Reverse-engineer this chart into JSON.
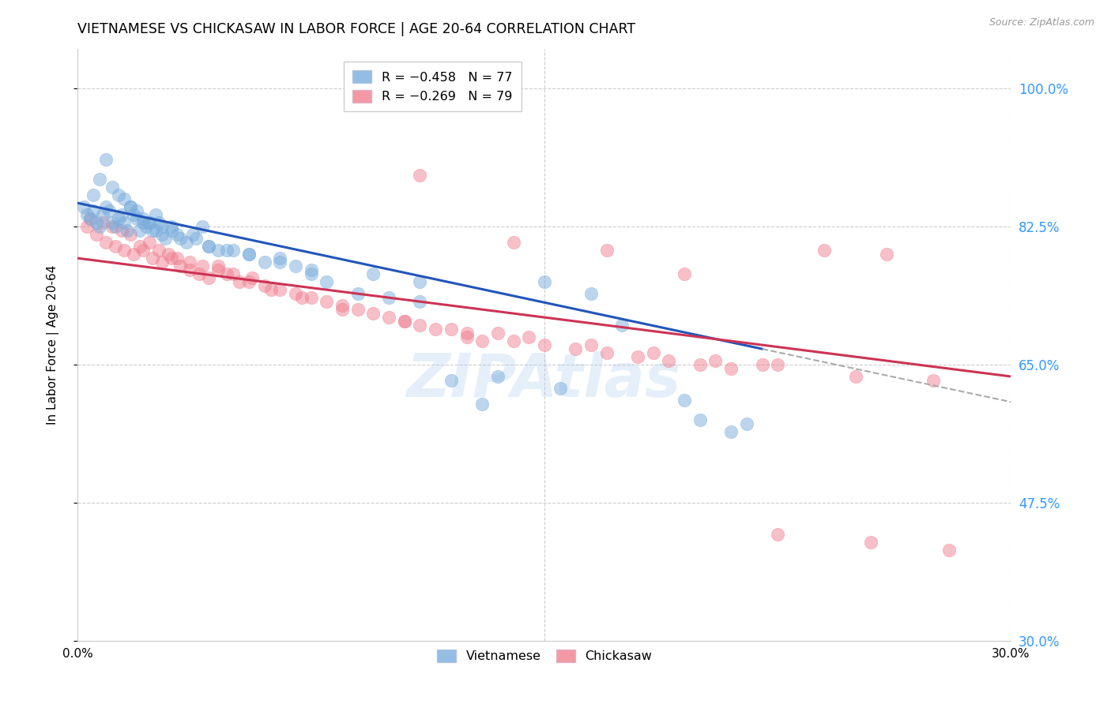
{
  "title": "VIETNAMESE VS CHICKASAW IN LABOR FORCE | AGE 20-64 CORRELATION CHART",
  "source": "Source: ZipAtlas.com",
  "ylabel": "In Labor Force | Age 20-64",
  "yticks": [
    30.0,
    47.5,
    65.0,
    82.5,
    100.0
  ],
  "xlim": [
    0.0,
    30.0
  ],
  "ylim": [
    30.0,
    105.0
  ],
  "R_vietnamese": -0.458,
  "N_vietnamese": 77,
  "R_chickasaw": -0.269,
  "N_chickasaw": 79,
  "blue_color": "#7aaddc",
  "blue_line_color": "#2255bb",
  "pink_color": "#f08090",
  "pink_line_color": "#cc3355",
  "background_color": "#ffffff",
  "grid_color": "#cccccc",
  "viet_x": [
    0.2,
    0.3,
    0.4,
    0.5,
    0.6,
    0.7,
    0.8,
    0.9,
    1.0,
    1.1,
    1.2,
    1.3,
    1.4,
    1.5,
    1.6,
    1.7,
    1.8,
    1.9,
    2.0,
    2.1,
    2.2,
    2.3,
    2.4,
    2.5,
    2.6,
    2.7,
    2.8,
    3.0,
    3.2,
    3.5,
    3.8,
    4.0,
    4.2,
    4.5,
    5.0,
    5.5,
    6.0,
    6.5,
    7.0,
    7.5,
    8.0,
    9.0,
    10.0,
    11.0,
    12.0,
    13.0,
    15.0,
    16.5,
    20.0,
    21.0,
    0.5,
    0.7,
    0.9,
    1.1,
    1.3,
    1.5,
    1.7,
    1.9,
    2.1,
    2.3,
    2.5,
    2.7,
    3.0,
    3.3,
    3.7,
    4.2,
    4.8,
    5.5,
    6.5,
    7.5,
    9.5,
    11.0,
    13.5,
    15.5,
    17.5,
    19.5,
    21.5
  ],
  "viet_y": [
    85.0,
    84.0,
    83.5,
    84.5,
    83.0,
    82.5,
    84.0,
    85.0,
    84.5,
    83.0,
    82.5,
    83.5,
    84.0,
    83.0,
    82.0,
    85.0,
    84.0,
    83.5,
    82.0,
    83.0,
    82.5,
    83.0,
    82.0,
    84.0,
    83.0,
    82.5,
    81.0,
    82.0,
    81.5,
    80.5,
    81.0,
    82.5,
    80.0,
    79.5,
    79.5,
    79.0,
    78.0,
    78.5,
    77.5,
    76.5,
    75.5,
    74.0,
    73.5,
    73.0,
    63.0,
    60.0,
    75.5,
    74.0,
    58.0,
    56.5,
    86.5,
    88.5,
    91.0,
    87.5,
    86.5,
    86.0,
    85.0,
    84.5,
    83.5,
    83.0,
    82.0,
    81.5,
    82.5,
    81.0,
    81.5,
    80.0,
    79.5,
    79.0,
    78.0,
    77.0,
    76.5,
    75.5,
    63.5,
    62.0,
    70.0,
    60.5,
    57.5
  ],
  "chick_x": [
    0.3,
    0.6,
    0.9,
    1.2,
    1.5,
    1.8,
    2.1,
    2.4,
    2.7,
    3.0,
    3.3,
    3.6,
    3.9,
    4.2,
    4.5,
    4.8,
    5.2,
    5.6,
    6.0,
    6.5,
    7.0,
    7.5,
    8.0,
    8.5,
    9.0,
    9.5,
    10.0,
    10.5,
    11.0,
    11.5,
    12.0,
    12.5,
    13.0,
    13.5,
    14.0,
    15.0,
    16.0,
    17.0,
    18.0,
    19.0,
    20.0,
    21.0,
    22.5,
    25.0,
    27.5,
    0.4,
    0.8,
    1.1,
    1.4,
    1.7,
    2.0,
    2.3,
    2.6,
    2.9,
    3.2,
    3.6,
    4.0,
    4.5,
    5.0,
    5.5,
    6.2,
    7.2,
    8.5,
    10.5,
    12.5,
    14.5,
    16.5,
    18.5,
    20.5,
    22.0,
    24.0,
    26.0,
    11.0,
    14.0,
    17.0,
    19.5,
    22.5,
    25.5,
    28.0
  ],
  "chick_y": [
    82.5,
    81.5,
    80.5,
    80.0,
    79.5,
    79.0,
    79.5,
    78.5,
    78.0,
    78.5,
    77.5,
    77.0,
    76.5,
    76.0,
    77.5,
    76.5,
    75.5,
    76.0,
    75.0,
    74.5,
    74.0,
    73.5,
    73.0,
    72.5,
    72.0,
    71.5,
    71.0,
    70.5,
    70.0,
    69.5,
    69.5,
    68.5,
    68.0,
    69.0,
    68.0,
    67.5,
    67.0,
    66.5,
    66.0,
    65.5,
    65.0,
    64.5,
    65.0,
    63.5,
    63.0,
    83.5,
    83.0,
    82.5,
    82.0,
    81.5,
    80.0,
    80.5,
    79.5,
    79.0,
    78.5,
    78.0,
    77.5,
    77.0,
    76.5,
    75.5,
    74.5,
    73.5,
    72.0,
    70.5,
    69.0,
    68.5,
    67.5,
    66.5,
    65.5,
    65.0,
    79.5,
    79.0,
    89.0,
    80.5,
    79.5,
    76.5,
    43.5,
    42.5,
    41.5
  ],
  "viet_line_x0": 0.0,
  "viet_line_y0": 85.5,
  "viet_line_x1": 22.0,
  "viet_line_y1": 67.0,
  "chick_line_x0": 0.0,
  "chick_line_y0": 78.5,
  "chick_line_x1": 30.0,
  "chick_line_y1": 63.5,
  "dashed_x0": 22.0,
  "dashed_x1": 30.0
}
